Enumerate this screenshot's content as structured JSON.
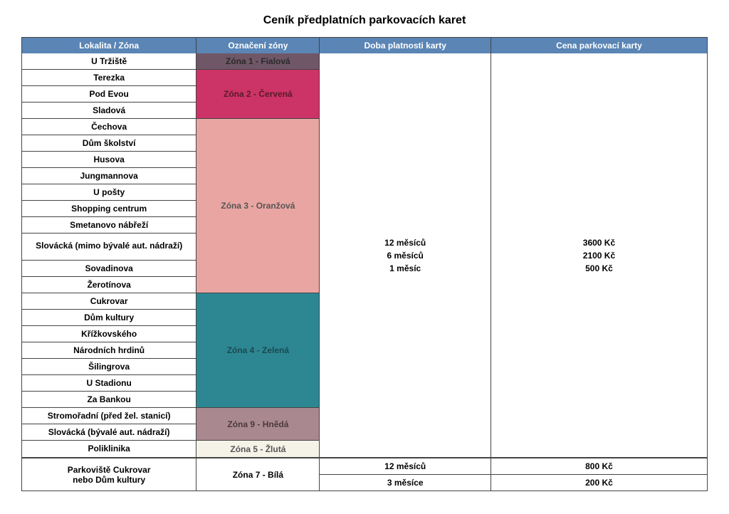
{
  "title": "Ceník předplatních parkovacích karet",
  "header_bg": "#5a85b5",
  "headers": {
    "loc": "Lokalita / Zóna",
    "zone": "Označení zóny",
    "dur": "Doba platnosti karty",
    "price": "Cena parkovací karty"
  },
  "zones": [
    {
      "label": "Zóna 1 - Fialová",
      "bg": "#6f5767",
      "rows": [
        "U Tržiště"
      ],
      "text": "#2a2a2a"
    },
    {
      "label": "Zóna 2 - Červená",
      "bg": "#cc3366",
      "rows": [
        "Terezka",
        "Pod Evou",
        "Sladová"
      ],
      "text": "#5a1a2a"
    },
    {
      "label": "Zóna 3 - Oranžová",
      "bg": "#e9a5a2",
      "rows": [
        "Čechova",
        "Dům školství",
        "Husova",
        "Jungmannova",
        "U pošty",
        "Shopping centrum",
        "Smetanovo nábřeží",
        "Slovácká (mimo bývalé aut. nádraží)",
        "Sovadinova",
        "Žerotínova"
      ],
      "text": "#555555",
      "tall_rows": [
        7
      ]
    },
    {
      "label": "Zóna 4 - Zelená",
      "bg": "#2d8793",
      "rows": [
        "Cukrovar",
        "Dům kultury",
        "Křížkovského",
        "Národních hrdinů",
        "Šilingrova",
        "U Stadionu",
        "Za Bankou"
      ],
      "text": "#1a4a50"
    },
    {
      "label": "Zóna 9 - Hnědá",
      "bg": "#a98890",
      "rows": [
        "Stromořadní (před žel. stanicí)",
        "Slovácká (bývalé aut. nádraží)"
      ],
      "text": "#4a3a3a"
    },
    {
      "label": "Zóna 5 - Žlutá",
      "bg": "#f5f3e8",
      "rows": [
        "Poliklinika"
      ],
      "text": "#555555"
    }
  ],
  "main_duration": [
    "12 měsíců",
    "6 měsíců",
    "1 měsíc"
  ],
  "main_price": [
    "3600 Kč",
    "2100 Kč",
    "500 Kč"
  ],
  "bottom": {
    "loc": "Parkoviště Cukrovar\nnebo Dům kultury",
    "zone": "Zóna 7 - Bílá",
    "rows": [
      {
        "dur": "12 měsíců",
        "price": "800 Kč"
      },
      {
        "dur": "3 měsíce",
        "price": "200 Kč"
      }
    ]
  }
}
